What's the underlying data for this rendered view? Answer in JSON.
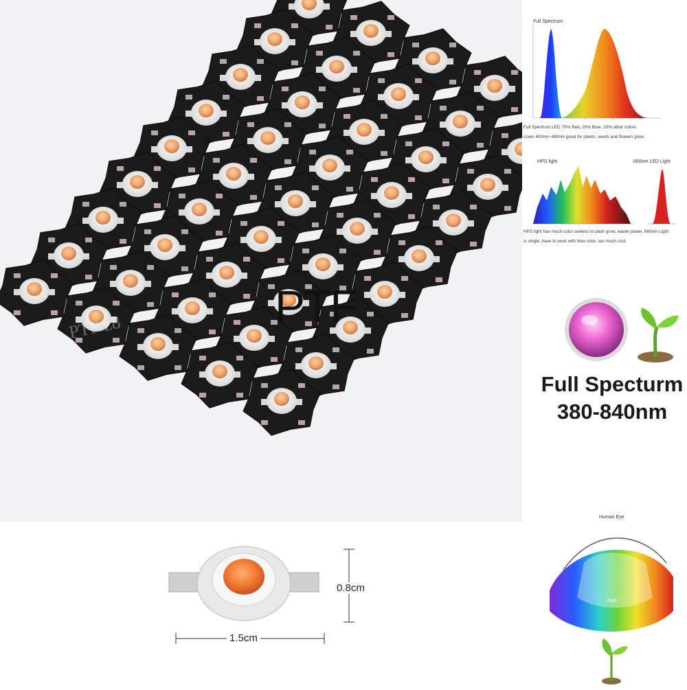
{
  "watermark": "PTF",
  "watermark_faint": "PTF  z8",
  "spectrum_chart_1": {
    "title": "Full Spectrum",
    "caption_line1": "Full Spectrum LED 70% Red, 20% Blue, 10% other colors",
    "caption_line2": "cover 400nm~480nm good for plants, seeds and flowers grow."
  },
  "spectrum_chart_2": {
    "label_left": "HPS light",
    "label_right": "660nm LED Light",
    "caption_line1": "HPS light has much color useless to plant grow, waste power, 660nm Light",
    "caption_line2": "is single, have to work with blue color, too much cost."
  },
  "badge": {
    "line1": "Full Specturm",
    "line2": "380-840nm"
  },
  "dimensions": {
    "height": "0.8cm",
    "width": "1.5cm"
  },
  "eye_chart": {
    "top_label": "Human Eye",
    "mid_label": "PAR"
  },
  "colors": {
    "pcb": "#1b1b1b",
    "led_lens": "#f0a46a",
    "background": "#f2f2f4",
    "spectrum_red": "#d6221e",
    "spectrum_blue": "#1b2fd6"
  }
}
